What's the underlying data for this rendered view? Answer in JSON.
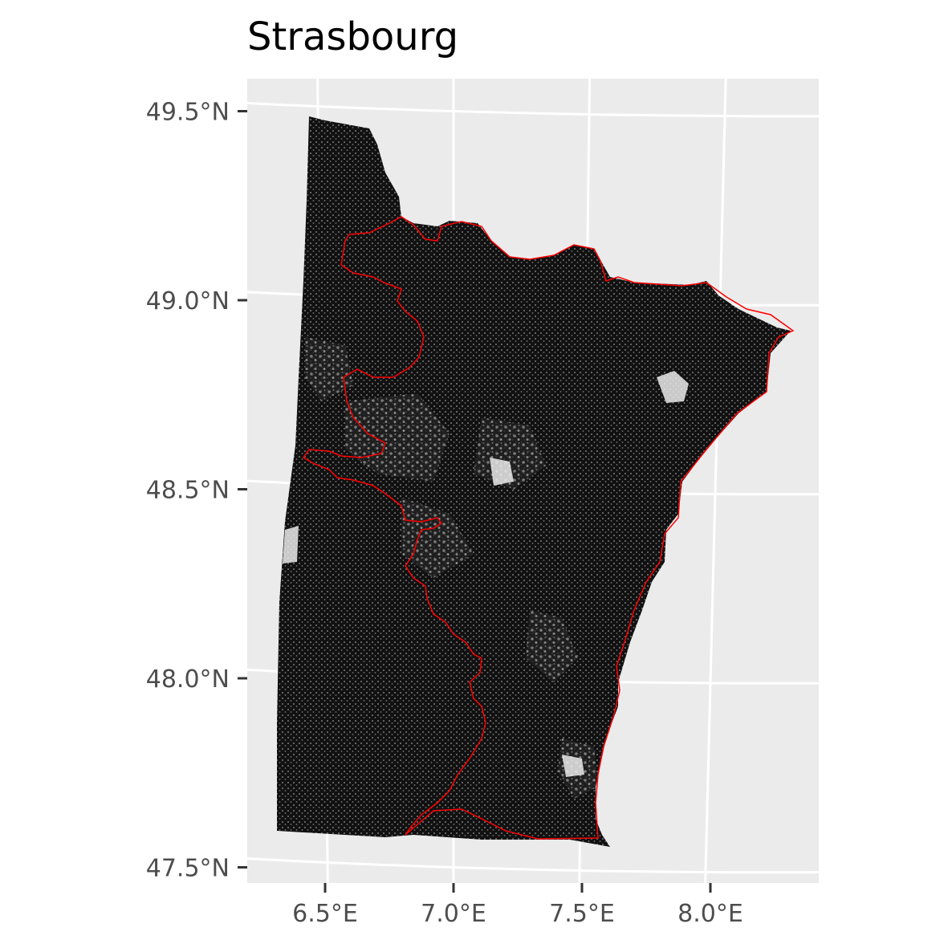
{
  "map": {
    "title": "Strasbourg",
    "panel_color": "#ebebeb",
    "grid_color": "#ffffff",
    "points_color": "#000000",
    "boundary_color": "#ff0000",
    "y_ticks": [
      {
        "value": 49.5,
        "label": "49.5°N"
      },
      {
        "value": 49.0,
        "label": "49.0°N"
      },
      {
        "value": 48.5,
        "label": "48.5°N"
      },
      {
        "value": 48.0,
        "label": "48.0°N"
      },
      {
        "value": 47.5,
        "label": "47.5°N"
      }
    ],
    "x_ticks": [
      {
        "value": 6.5,
        "label": "6.5°E"
      },
      {
        "value": 7.0,
        "label": "7.0°E"
      },
      {
        "value": 7.5,
        "label": "7.5°E"
      },
      {
        "value": 8.0,
        "label": "8.0°E"
      }
    ],
    "layers": [
      {
        "name": "dense point cloud of locations",
        "type": "points"
      },
      {
        "name": "red boundary outline",
        "type": "polygon"
      }
    ]
  }
}
